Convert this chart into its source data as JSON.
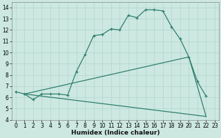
{
  "title": "",
  "xlabel": "Humidex (Indice chaleur)",
  "bg_color": "#cce8e0",
  "line_color": "#2e7d6e",
  "line1_x": [
    0,
    1,
    2,
    3,
    4,
    5,
    6,
    7,
    8,
    9,
    10,
    11,
    12,
    13,
    14,
    15,
    16,
    17,
    18,
    19,
    20,
    21,
    22
  ],
  "line1_y": [
    6.5,
    6.3,
    5.8,
    6.3,
    6.3,
    6.3,
    6.2,
    8.3,
    9.8,
    11.5,
    11.6,
    12.1,
    12.0,
    13.3,
    13.1,
    13.8,
    13.8,
    13.7,
    12.3,
    11.2,
    9.6,
    7.4,
    6.1
  ],
  "line2_x": [
    1,
    22
  ],
  "line2_y": [
    6.3,
    4.3
  ],
  "line3_x": [
    1,
    20,
    22
  ],
  "line3_y": [
    6.3,
    9.6,
    4.3
  ],
  "xlim": [
    -0.5,
    23.5
  ],
  "ylim": [
    4,
    14.5
  ],
  "xticks": [
    0,
    1,
    2,
    3,
    4,
    5,
    6,
    7,
    8,
    9,
    10,
    11,
    12,
    13,
    14,
    15,
    16,
    17,
    18,
    19,
    20,
    21,
    22,
    23
  ],
  "yticks": [
    4,
    5,
    6,
    7,
    8,
    9,
    10,
    11,
    12,
    13,
    14
  ],
  "grid_color": "#b0d4cc",
  "xlabel_fontsize": 6.5,
  "tick_fontsize": 5.5
}
